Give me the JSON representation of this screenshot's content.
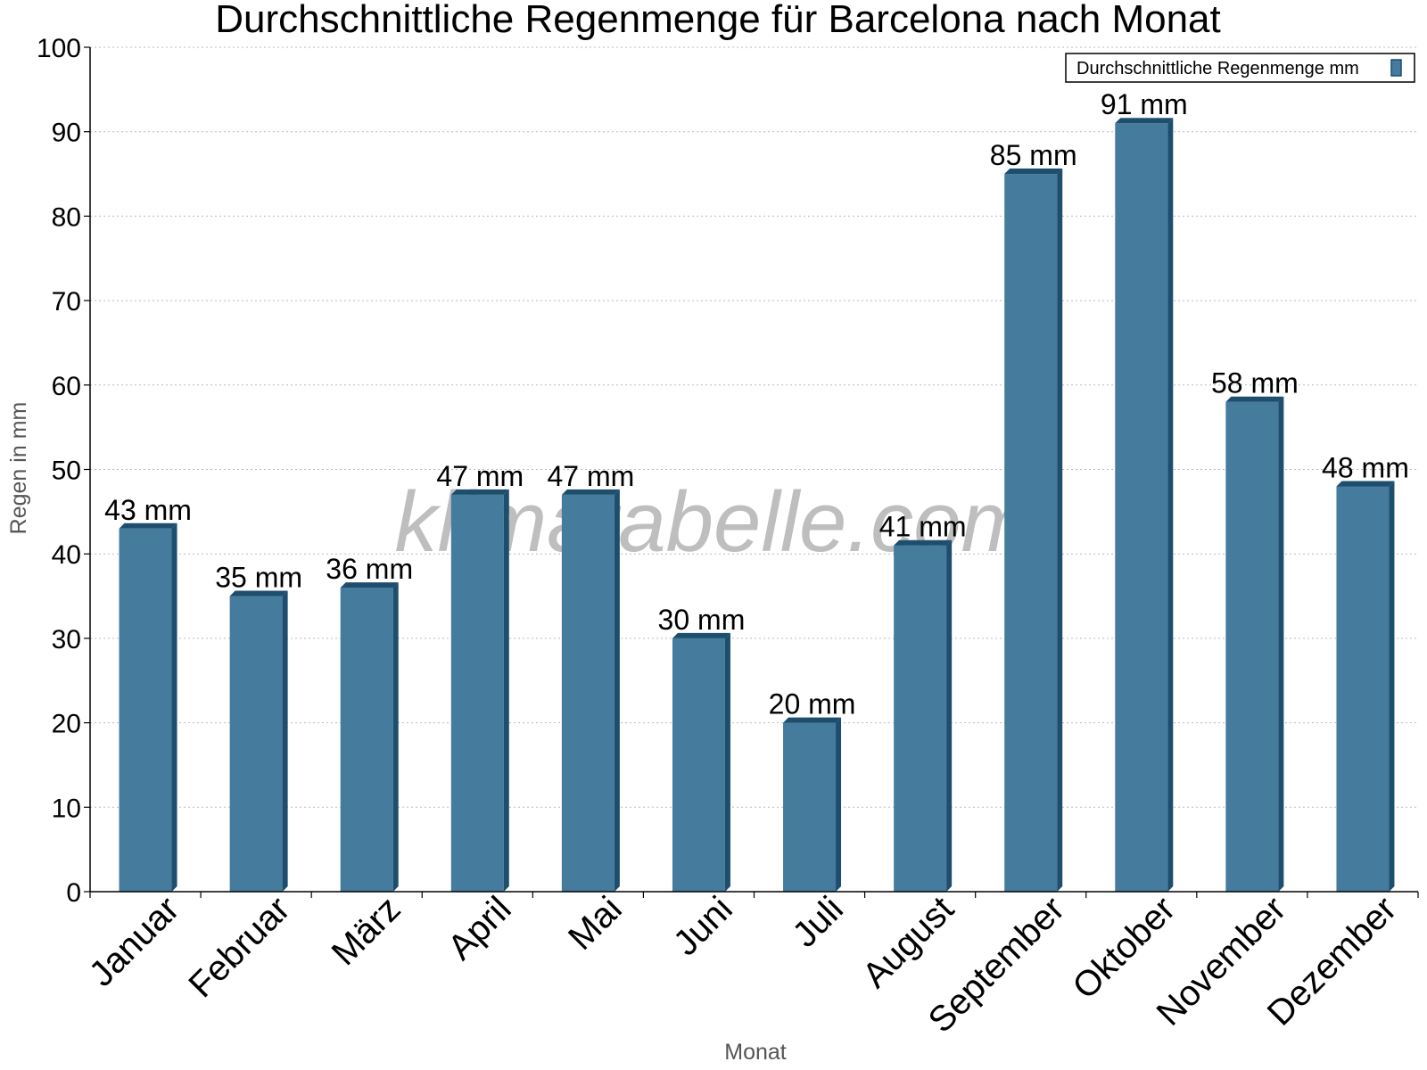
{
  "chart_data": {
    "type": "bar",
    "title": "Durchschnittliche Regenmenge für Barcelona nach Monat",
    "xlabel": "Monat",
    "ylabel": "Regen in mm",
    "categories": [
      "Januar",
      "Februar",
      "März",
      "April",
      "Mai",
      "Juni",
      "Juli",
      "August",
      "September",
      "Oktober",
      "November",
      "Dezember"
    ],
    "series": [
      {
        "name": "Durchschnittliche Regenmenge mm",
        "values": [
          43,
          35,
          36,
          47,
          47,
          30,
          20,
          41,
          85,
          91,
          58,
          48
        ],
        "labels": [
          "43 mm",
          "35 mm",
          "36 mm",
          "47 mm",
          "47 mm",
          "30 mm",
          "20 mm",
          "41 mm",
          "85 mm",
          "91 mm",
          "58 mm",
          "48 mm"
        ]
      }
    ],
    "ylim": [
      0,
      100
    ],
    "yticks": [
      "0",
      "10",
      "20",
      "30",
      "40",
      "50",
      "60",
      "70",
      "80",
      "90",
      "100"
    ],
    "grid": true,
    "legend_position": "top-right",
    "colors": {
      "bar": "#457b9d",
      "bar_edge": "#1d4e6e"
    }
  },
  "watermark": "klimatabelle.com"
}
